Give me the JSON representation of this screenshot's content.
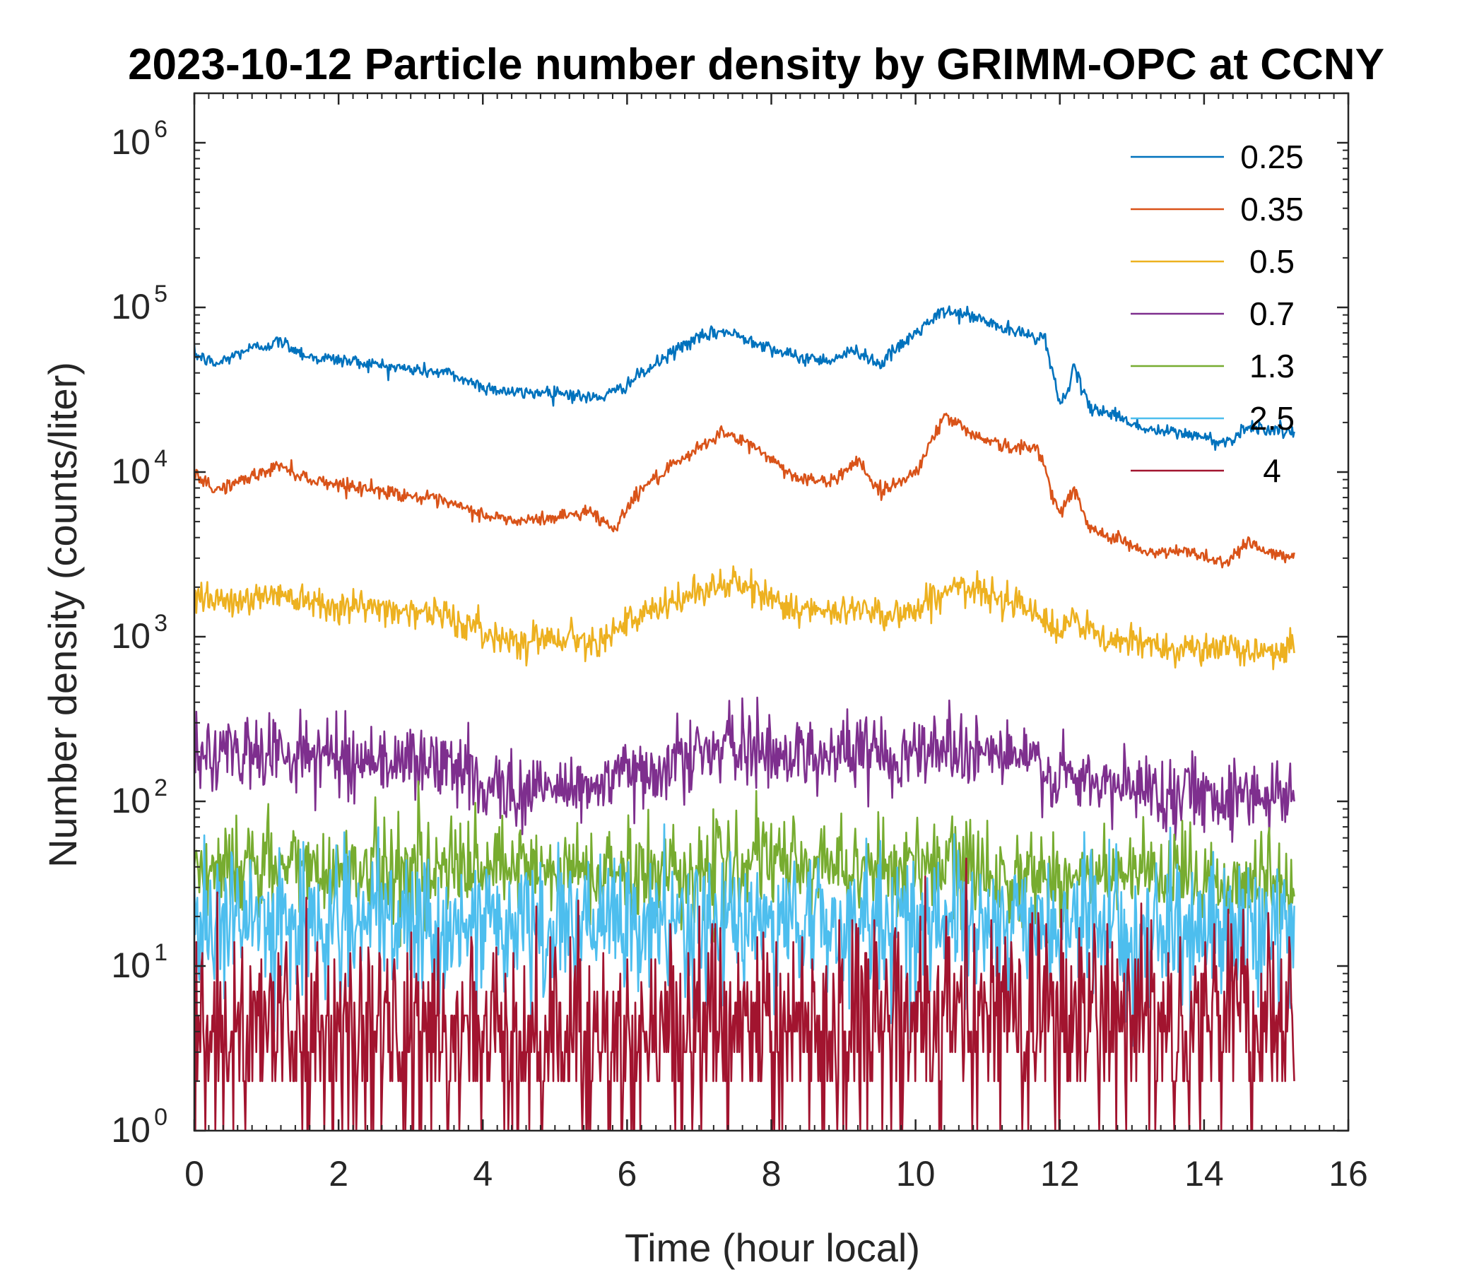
{
  "chart_data": {
    "type": "line",
    "title": "2023-10-12 Particle number density by GRIMM-OPC at CCNY",
    "xlabel": "Time (hour local)",
    "ylabel": "Number density (counts/liter)",
    "xlim": [
      0,
      16
    ],
    "ylim": [
      1,
      2000000
    ],
    "yscale": "log",
    "xticks": [
      "0",
      "2",
      "4",
      "6",
      "8",
      "10",
      "12",
      "14",
      "16"
    ],
    "yticks": [
      {
        "base": "10",
        "exp": "0"
      },
      {
        "base": "10",
        "exp": "1"
      },
      {
        "base": "10",
        "exp": "2"
      },
      {
        "base": "10",
        "exp": "3"
      },
      {
        "base": "10",
        "exp": "4"
      },
      {
        "base": "10",
        "exp": "5"
      },
      {
        "base": "10",
        "exp": "6"
      }
    ],
    "legend_position": "top-right",
    "x_range_data": [
      0,
      15.25
    ],
    "series": [
      {
        "name": "0.25",
        "color": "#0072BD",
        "noise": 0.06,
        "smooth": true,
        "points": [
          [
            0,
            52000
          ],
          [
            0.3,
            45000
          ],
          [
            0.7,
            55000
          ],
          [
            1.2,
            62000
          ],
          [
            1.6,
            50000
          ],
          [
            2.2,
            47000
          ],
          [
            3.0,
            42000
          ],
          [
            3.5,
            40000
          ],
          [
            4.0,
            33000
          ],
          [
            4.5,
            30000
          ],
          [
            5.0,
            31000
          ],
          [
            5.5,
            28000
          ],
          [
            5.8,
            30000
          ],
          [
            6.3,
            42000
          ],
          [
            6.8,
            60000
          ],
          [
            7.3,
            72000
          ],
          [
            7.8,
            62000
          ],
          [
            8.3,
            50000
          ],
          [
            8.8,
            48000
          ],
          [
            9.2,
            55000
          ],
          [
            9.5,
            45000
          ],
          [
            10.0,
            70000
          ],
          [
            10.4,
            95000
          ],
          [
            10.8,
            88000
          ],
          [
            11.3,
            72000
          ],
          [
            11.8,
            65000
          ],
          [
            12.0,
            25000
          ],
          [
            12.2,
            42000
          ],
          [
            12.4,
            25000
          ],
          [
            12.8,
            22000
          ],
          [
            13.2,
            18000
          ],
          [
            13.8,
            17000
          ],
          [
            14.3,
            15000
          ],
          [
            14.6,
            19000
          ],
          [
            15.0,
            18000
          ],
          [
            15.25,
            17000
          ]
        ]
      },
      {
        "name": "0.35",
        "color": "#D95319",
        "noise": 0.06,
        "smooth": true,
        "points": [
          [
            0,
            9500
          ],
          [
            0.3,
            7800
          ],
          [
            0.7,
            9000
          ],
          [
            1.2,
            11000
          ],
          [
            1.6,
            9000
          ],
          [
            2.2,
            8200
          ],
          [
            3.0,
            7200
          ],
          [
            3.5,
            6500
          ],
          [
            4.0,
            5500
          ],
          [
            4.5,
            5000
          ],
          [
            5.0,
            5300
          ],
          [
            5.5,
            5800
          ],
          [
            5.8,
            4500
          ],
          [
            6.2,
            8000
          ],
          [
            6.8,
            12000
          ],
          [
            7.3,
            17500
          ],
          [
            7.8,
            14000
          ],
          [
            8.3,
            9500
          ],
          [
            8.8,
            8500
          ],
          [
            9.2,
            12000
          ],
          [
            9.5,
            7500
          ],
          [
            10.0,
            10000
          ],
          [
            10.4,
            22000
          ],
          [
            10.8,
            17000
          ],
          [
            11.3,
            14000
          ],
          [
            11.7,
            14000
          ],
          [
            12.0,
            5500
          ],
          [
            12.2,
            8000
          ],
          [
            12.4,
            4500
          ],
          [
            12.8,
            4000
          ],
          [
            13.2,
            3200
          ],
          [
            13.8,
            3300
          ],
          [
            14.3,
            2800
          ],
          [
            14.6,
            3800
          ],
          [
            15.0,
            3100
          ],
          [
            15.25,
            3000
          ]
        ]
      },
      {
        "name": "0.5",
        "color": "#EDB120",
        "noise": 0.14,
        "smooth": true,
        "points": [
          [
            0,
            1900
          ],
          [
            0.5,
            1600
          ],
          [
            1.2,
            1850
          ],
          [
            2.0,
            1550
          ],
          [
            3.0,
            1450
          ],
          [
            3.5,
            1350
          ],
          [
            4.0,
            1050
          ],
          [
            4.5,
            950
          ],
          [
            5.0,
            1000
          ],
          [
            5.5,
            950
          ],
          [
            6.0,
            1200
          ],
          [
            6.5,
            1500
          ],
          [
            7.0,
            1900
          ],
          [
            7.4,
            2100
          ],
          [
            7.8,
            1900
          ],
          [
            8.3,
            1500
          ],
          [
            8.8,
            1350
          ],
          [
            9.3,
            1550
          ],
          [
            9.6,
            1350
          ],
          [
            10.0,
            1450
          ],
          [
            10.5,
            2000
          ],
          [
            11.0,
            1800
          ],
          [
            11.6,
            1600
          ],
          [
            11.9,
            1050
          ],
          [
            12.2,
            1250
          ],
          [
            12.6,
            950
          ],
          [
            13.2,
            900
          ],
          [
            14.0,
            850
          ],
          [
            14.6,
            820
          ],
          [
            15.25,
            850
          ]
        ]
      },
      {
        "name": "0.7",
        "color": "#7E2F8E",
        "noise": 0.32,
        "smooth": true,
        "points": [
          [
            0,
            190
          ],
          [
            1.2,
            200
          ],
          [
            2.0,
            185
          ],
          [
            3.0,
            175
          ],
          [
            3.5,
            165
          ],
          [
            4.0,
            130
          ],
          [
            4.5,
            115
          ],
          [
            5.0,
            120
          ],
          [
            5.5,
            125
          ],
          [
            6.0,
            140
          ],
          [
            6.5,
            170
          ],
          [
            7.0,
            200
          ],
          [
            7.5,
            210
          ],
          [
            8.0,
            200
          ],
          [
            8.5,
            195
          ],
          [
            9.0,
            200
          ],
          [
            9.5,
            195
          ],
          [
            10.0,
            205
          ],
          [
            10.5,
            220
          ],
          [
            11.0,
            200
          ],
          [
            11.6,
            175
          ],
          [
            12.0,
            135
          ],
          [
            12.5,
            125
          ],
          [
            13.0,
            120
          ],
          [
            13.8,
            115
          ],
          [
            14.5,
            110
          ],
          [
            15.25,
            115
          ]
        ]
      },
      {
        "name": "1.3",
        "color": "#77AC30",
        "noise": 0.42,
        "smooth": true,
        "points": [
          [
            0,
            40
          ],
          [
            2,
            40
          ],
          [
            4,
            38
          ],
          [
            6,
            37
          ],
          [
            8,
            42
          ],
          [
            10,
            40
          ],
          [
            12,
            35
          ],
          [
            14,
            33
          ],
          [
            15.25,
            32
          ]
        ]
      },
      {
        "name": "2.5",
        "color": "#4DBEEE",
        "noise": 0.6,
        "smooth": true,
        "points": [
          [
            0,
            18
          ],
          [
            2,
            18
          ],
          [
            4,
            17
          ],
          [
            6,
            17
          ],
          [
            8,
            18
          ],
          [
            10,
            19
          ],
          [
            12,
            17
          ],
          [
            14,
            16
          ],
          [
            15.25,
            17
          ]
        ]
      },
      {
        "name": "4",
        "color": "#A2142F",
        "noise": 0.9,
        "smooth": true,
        "points": [
          [
            0,
            4
          ],
          [
            2,
            4
          ],
          [
            4,
            3.6
          ],
          [
            6,
            3.8
          ],
          [
            8,
            4.2
          ],
          [
            10,
            5
          ],
          [
            12,
            4.8
          ],
          [
            14,
            5
          ],
          [
            15.25,
            4.8
          ]
        ]
      }
    ]
  }
}
